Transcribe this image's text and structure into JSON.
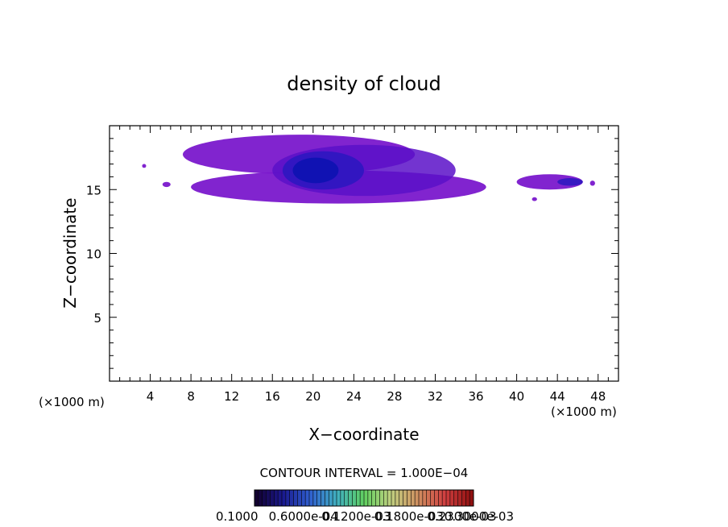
{
  "chart_data": {
    "type": "heatmap",
    "title": "density of cloud",
    "xlabel": "X−coordinate",
    "ylabel": "Z−coordinate",
    "x_unit_left": "(×1000 m)",
    "x_unit_right": "(×1000 m)",
    "xlim": [
      0,
      50
    ],
    "ylim": [
      0,
      20
    ],
    "x_ticks": [
      4,
      8,
      12,
      16,
      20,
      24,
      28,
      32,
      36,
      40,
      44,
      48
    ],
    "y_ticks": [
      5,
      10,
      15
    ],
    "contour_interval_label": "CONTOUR INTERVAL = 1.000E−04",
    "colorbar_labels": [
      "0.1000",
      "0.6000e-04",
      "0.1200e-03",
      "0.1800e-03",
      "0.2300e-03",
      "0.3000e-03"
    ],
    "colors": {
      "outer": "#7a18cc",
      "mid": "#5a10c8",
      "inner": "#2a18c0",
      "core": "#0a12b0",
      "pink": "#9a2aa0",
      "colorbar": [
        "#120030",
        "#1a1a90",
        "#3060d0",
        "#40b0c0",
        "#60d060",
        "#c0d080",
        "#d09060",
        "#d04040",
        "#901010"
      ]
    },
    "cloud_blobs": [
      {
        "x": [
          3.2,
          3.6
        ],
        "z": [
          16.7,
          17.0
        ],
        "level": 1
      },
      {
        "x": [
          5.2,
          6.0
        ],
        "z": [
          15.2,
          15.6
        ],
        "level": 1
      },
      {
        "x": [
          7.2,
          30.0
        ],
        "z": [
          16.2,
          19.3
        ],
        "level": 1
      },
      {
        "x": [
          8.0,
          37.0
        ],
        "z": [
          13.9,
          16.5
        ],
        "level": 1
      },
      {
        "x": [
          16.0,
          34.0
        ],
        "z": [
          14.5,
          18.5
        ],
        "level": 2
      },
      {
        "x": [
          17.0,
          25.0
        ],
        "z": [
          15.0,
          18.0
        ],
        "level": 3
      },
      {
        "x": [
          18.0,
          22.5
        ],
        "z": [
          15.5,
          17.5
        ],
        "level": 4
      },
      {
        "x": [
          40.0,
          46.5
        ],
        "z": [
          15.0,
          16.2
        ],
        "level": 1
      },
      {
        "x": [
          44.0,
          46.5
        ],
        "z": [
          15.3,
          15.9
        ],
        "level": 3
      },
      {
        "x": [
          41.5,
          42.0
        ],
        "z": [
          14.1,
          14.4
        ],
        "level": 1
      },
      {
        "x": [
          47.2,
          47.7
        ],
        "z": [
          15.3,
          15.7
        ],
        "level": 1
      }
    ]
  }
}
